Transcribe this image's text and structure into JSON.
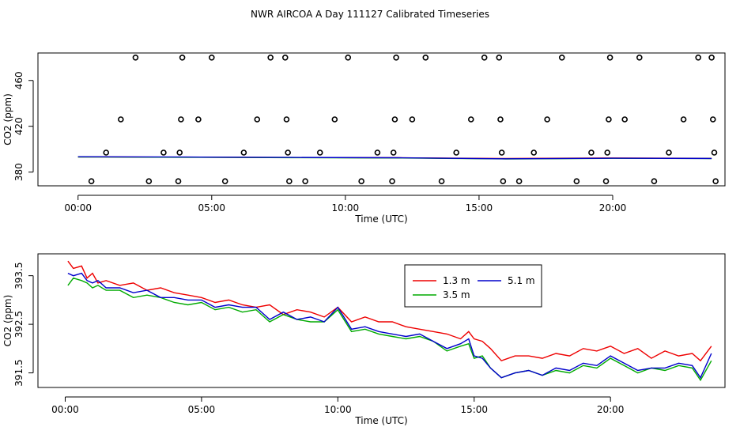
{
  "title": "NWR AIRCOA A  Day 111127  Calibrated Timeseries",
  "colors": {
    "red": "#ee0000",
    "green": "#00aa00",
    "blue": "#0000cc"
  },
  "chart_data": [
    {
      "type": "scatter",
      "xlabel": "Time (UTC)",
      "ylabel": "CO2 (ppm)",
      "xlim": [
        -1.5,
        24.2
      ],
      "ylim": [
        368,
        484
      ],
      "x_ticks": [
        0,
        5,
        10,
        15,
        20
      ],
      "x_tick_labels": [
        "00:00",
        "05:00",
        "10:00",
        "15:00",
        "20:00"
      ],
      "y_ticks": [
        380,
        420,
        460
      ],
      "y_tick_labels": [
        "380",
        "420",
        "460"
      ],
      "grid": false,
      "points": [
        {
          "x": 0.5,
          "y": 372
        },
        {
          "x": 1.05,
          "y": 397
        },
        {
          "x": 1.6,
          "y": 426
        },
        {
          "x": 2.15,
          "y": 480
        },
        {
          "x": 2.65,
          "y": 372
        },
        {
          "x": 3.2,
          "y": 397
        },
        {
          "x": 3.75,
          "y": 372
        },
        {
          "x": 3.8,
          "y": 397
        },
        {
          "x": 3.85,
          "y": 426
        },
        {
          "x": 3.9,
          "y": 480
        },
        {
          "x": 4.5,
          "y": 426
        },
        {
          "x": 5.0,
          "y": 480
        },
        {
          "x": 5.5,
          "y": 372
        },
        {
          "x": 6.2,
          "y": 397
        },
        {
          "x": 6.7,
          "y": 426
        },
        {
          "x": 7.2,
          "y": 480
        },
        {
          "x": 7.75,
          "y": 480
        },
        {
          "x": 7.8,
          "y": 426
        },
        {
          "x": 7.85,
          "y": 397
        },
        {
          "x": 7.9,
          "y": 372
        },
        {
          "x": 8.5,
          "y": 372
        },
        {
          "x": 9.05,
          "y": 397
        },
        {
          "x": 9.6,
          "y": 426
        },
        {
          "x": 10.1,
          "y": 480
        },
        {
          "x": 10.6,
          "y": 372
        },
        {
          "x": 11.2,
          "y": 397
        },
        {
          "x": 11.75,
          "y": 372
        },
        {
          "x": 11.8,
          "y": 397
        },
        {
          "x": 11.85,
          "y": 426
        },
        {
          "x": 11.9,
          "y": 480
        },
        {
          "x": 12.5,
          "y": 426
        },
        {
          "x": 13.0,
          "y": 480
        },
        {
          "x": 13.6,
          "y": 372
        },
        {
          "x": 14.15,
          "y": 397
        },
        {
          "x": 14.7,
          "y": 426
        },
        {
          "x": 15.2,
          "y": 480
        },
        {
          "x": 15.75,
          "y": 480
        },
        {
          "x": 15.8,
          "y": 426
        },
        {
          "x": 15.85,
          "y": 397
        },
        {
          "x": 15.9,
          "y": 372
        },
        {
          "x": 16.5,
          "y": 372
        },
        {
          "x": 17.05,
          "y": 397
        },
        {
          "x": 17.55,
          "y": 426
        },
        {
          "x": 18.1,
          "y": 480
        },
        {
          "x": 18.65,
          "y": 372
        },
        {
          "x": 19.2,
          "y": 397
        },
        {
          "x": 19.75,
          "y": 372
        },
        {
          "x": 19.8,
          "y": 397
        },
        {
          "x": 19.85,
          "y": 426
        },
        {
          "x": 19.9,
          "y": 480
        },
        {
          "x": 20.45,
          "y": 426
        },
        {
          "x": 21.0,
          "y": 480
        },
        {
          "x": 21.55,
          "y": 372
        },
        {
          "x": 22.1,
          "y": 397
        },
        {
          "x": 22.65,
          "y": 426
        },
        {
          "x": 23.2,
          "y": 480
        },
        {
          "x": 23.7,
          "y": 480
        },
        {
          "x": 23.75,
          "y": 426
        },
        {
          "x": 23.8,
          "y": 397
        },
        {
          "x": 23.85,
          "y": 372
        }
      ],
      "lines": [
        {
          "color": "#ee0000",
          "x": [
            0,
            4,
            8,
            12,
            16,
            20,
            23.7
          ],
          "y": [
            393.3,
            393.0,
            392.7,
            392.5,
            391.8,
            392.3,
            392.0
          ]
        },
        {
          "color": "#00aa00",
          "x": [
            0,
            4,
            8,
            12,
            16,
            20,
            23.7
          ],
          "y": [
            393.2,
            392.9,
            392.6,
            392.3,
            391.5,
            392.0,
            391.8
          ]
        },
        {
          "color": "#0000cc",
          "x": [
            0,
            4,
            8,
            12,
            16,
            20,
            23.7
          ],
          "y": [
            393.4,
            393.1,
            392.8,
            392.5,
            391.6,
            392.1,
            391.9
          ]
        }
      ]
    },
    {
      "type": "line",
      "xlabel": "Time (UTC)",
      "ylabel": "CO2 (ppm)",
      "xlim": [
        -1.0,
        24.2
      ],
      "ylim": [
        391.2,
        393.95
      ],
      "x_ticks": [
        0,
        5,
        10,
        15,
        20
      ],
      "x_tick_labels": [
        "00:00",
        "05:00",
        "10:00",
        "15:00",
        "20:00"
      ],
      "y_ticks": [
        391.5,
        392.5,
        393.5
      ],
      "y_tick_labels": [
        "391.5",
        "392.5",
        "393.5"
      ],
      "grid": false,
      "legend_position": "top-center",
      "series": [
        {
          "name": "1.3 m",
          "color": "#ee0000",
          "x": [
            0.1,
            0.3,
            0.6,
            0.8,
            1.0,
            1.2,
            1.5,
            2.0,
            2.5,
            3.0,
            3.5,
            4.0,
            4.5,
            5.0,
            5.5,
            6.0,
            6.5,
            7.0,
            7.5,
            8.0,
            8.5,
            9.0,
            9.5,
            10.0,
            10.5,
            11.0,
            11.5,
            12.0,
            12.5,
            13.0,
            13.5,
            14.0,
            14.5,
            14.8,
            15.0,
            15.3,
            15.6,
            16.0,
            16.5,
            17.0,
            17.5,
            18.0,
            18.5,
            19.0,
            19.5,
            20.0,
            20.5,
            21.0,
            21.5,
            22.0,
            22.5,
            23.0,
            23.3,
            23.7
          ],
          "y": [
            393.8,
            393.65,
            393.7,
            393.45,
            393.55,
            393.35,
            393.4,
            393.3,
            393.35,
            393.2,
            393.25,
            393.15,
            393.1,
            393.05,
            392.95,
            393.0,
            392.9,
            392.85,
            392.9,
            392.7,
            392.8,
            392.75,
            392.65,
            392.85,
            392.55,
            392.65,
            392.55,
            392.55,
            392.45,
            392.4,
            392.35,
            392.3,
            392.2,
            392.35,
            392.2,
            392.15,
            392.0,
            391.75,
            391.85,
            391.85,
            391.8,
            391.9,
            391.85,
            392.0,
            391.95,
            392.05,
            391.9,
            392.0,
            391.8,
            391.95,
            391.85,
            391.9,
            391.75,
            392.05
          ]
        },
        {
          "name": "3.5 m",
          "color": "#00aa00",
          "x": [
            0.1,
            0.3,
            0.6,
            0.8,
            1.0,
            1.2,
            1.5,
            2.0,
            2.5,
            3.0,
            3.5,
            4.0,
            4.5,
            5.0,
            5.5,
            6.0,
            6.5,
            7.0,
            7.5,
            8.0,
            8.5,
            9.0,
            9.5,
            10.0,
            10.5,
            11.0,
            11.5,
            12.0,
            12.5,
            13.0,
            13.5,
            14.0,
            14.5,
            14.8,
            15.0,
            15.3,
            15.6,
            16.0,
            16.5,
            17.0,
            17.5,
            18.0,
            18.5,
            19.0,
            19.5,
            20.0,
            20.5,
            21.0,
            21.5,
            22.0,
            22.5,
            23.0,
            23.3,
            23.7
          ],
          "y": [
            393.3,
            393.45,
            393.4,
            393.35,
            393.25,
            393.3,
            393.2,
            393.2,
            393.05,
            393.1,
            393.05,
            392.95,
            392.9,
            392.95,
            392.8,
            392.85,
            392.75,
            392.8,
            392.55,
            392.7,
            392.6,
            392.55,
            392.55,
            392.8,
            392.35,
            392.4,
            392.3,
            392.25,
            392.2,
            392.25,
            392.15,
            391.95,
            392.05,
            392.1,
            391.8,
            391.85,
            391.6,
            391.4,
            391.5,
            391.55,
            391.45,
            391.55,
            391.5,
            391.65,
            391.6,
            391.8,
            391.65,
            391.5,
            391.6,
            391.55,
            391.65,
            391.6,
            391.35,
            391.75
          ]
        },
        {
          "name": "5.1 m",
          "color": "#0000cc",
          "x": [
            0.1,
            0.3,
            0.6,
            0.8,
            1.0,
            1.2,
            1.5,
            2.0,
            2.5,
            3.0,
            3.5,
            4.0,
            4.5,
            5.0,
            5.5,
            6.0,
            6.5,
            7.0,
            7.5,
            8.0,
            8.5,
            9.0,
            9.5,
            10.0,
            10.5,
            11.0,
            11.5,
            12.0,
            12.5,
            13.0,
            13.5,
            14.0,
            14.5,
            14.8,
            15.0,
            15.3,
            15.6,
            16.0,
            16.5,
            17.0,
            17.5,
            18.0,
            18.5,
            19.0,
            19.5,
            20.0,
            20.5,
            21.0,
            21.5,
            22.0,
            22.5,
            23.0,
            23.3,
            23.7
          ],
          "y": [
            393.55,
            393.5,
            393.55,
            393.4,
            393.35,
            393.4,
            393.25,
            393.25,
            393.15,
            393.2,
            393.05,
            393.05,
            393.0,
            393.0,
            392.85,
            392.9,
            392.85,
            392.85,
            392.6,
            392.75,
            392.6,
            392.65,
            392.55,
            392.85,
            392.4,
            392.45,
            392.35,
            392.3,
            392.25,
            392.3,
            392.15,
            392.0,
            392.1,
            392.2,
            391.85,
            391.8,
            391.6,
            391.4,
            391.5,
            391.55,
            391.45,
            391.6,
            391.55,
            391.7,
            391.65,
            391.85,
            391.7,
            391.55,
            391.6,
            391.6,
            391.7,
            391.65,
            391.4,
            391.9
          ]
        }
      ]
    }
  ]
}
